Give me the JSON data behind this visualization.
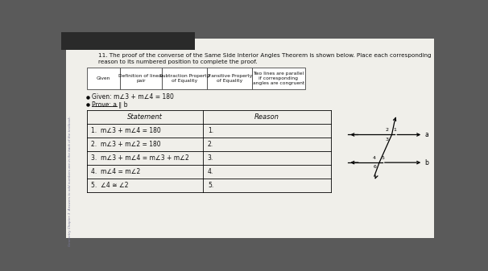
{
  "bg_color": "#5a5a5a",
  "paper_color": "#f0efea",
  "title_line1": "11. The proof of the converse of the Same Side Interior Angles Theorem is shown below. Place each corresponding",
  "title_line2": "reason to its numbered position to complete the proof.",
  "reason_headers": [
    "Given",
    "Definition of linear\npair",
    "Subtraction Property\nof Equality",
    "Transitive Property\nof Equality",
    "Two lines are parallel\nif corresponding\nangles are congruent"
  ],
  "given_text": "Given: m∠3 + m∠4 = 180",
  "prove_text": "Prove: a ∥ b",
  "table_headers": [
    "Statement",
    "Reason"
  ],
  "statements": [
    "1.  m∠3 + m∠4 = 180",
    "2.  m∠3 + m∠2 = 180",
    "3.  m∠3 + m∠4 = m∠3 + m∠2",
    "4.  m∠4 = m∠2",
    "5.  ∠4 ≅ ∠2"
  ],
  "reasons": [
    "1.",
    "2.",
    "3.",
    "4.",
    "5."
  ],
  "margin_text": "Geometry Chapter 3  Answers to odd numbers are in the back of the textbook."
}
